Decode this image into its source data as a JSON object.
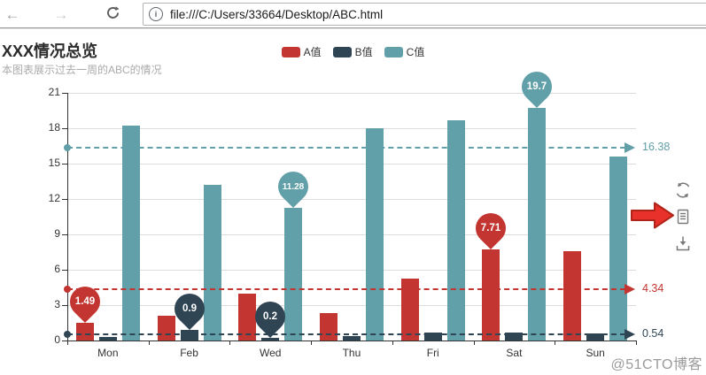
{
  "browser": {
    "url": "file:///C:/Users/33664/Desktop/ABC.html",
    "info_icon_glyph": "i"
  },
  "chart_data": {
    "type": "bar",
    "title": "XXX情况总览",
    "subtitle": "本图表展示过去一周的ABC的情况",
    "categories": [
      "Mon",
      "Feb",
      "Wed",
      "Thu",
      "Fri",
      "Sat",
      "Sun"
    ],
    "ylim": [
      0,
      21
    ],
    "yticks": [
      0,
      3,
      6,
      9,
      12,
      15,
      18,
      21
    ],
    "grid": true,
    "legend_position": "top-center",
    "series": [
      {
        "name": "A值",
        "color": "#c23531",
        "values": [
          1.49,
          2.08,
          4.0,
          2.3,
          5.22,
          7.71,
          7.58
        ],
        "avg_line": 4.34,
        "markpoints": [
          {
            "category": "Mon",
            "value": 1.49,
            "type": "min"
          },
          {
            "category": "Sat",
            "value": 7.71,
            "type": "max"
          }
        ]
      },
      {
        "name": "B值",
        "color": "#2f4554",
        "values": [
          0.3,
          0.9,
          0.2,
          0.4,
          0.7,
          0.68,
          0.6
        ],
        "avg_line": 0.54,
        "markpoints": [
          {
            "category": "Feb",
            "value": 0.9,
            "type": "max"
          },
          {
            "category": "Wed",
            "value": 0.2,
            "type": "min"
          }
        ]
      },
      {
        "name": "C值",
        "color": "#61a0a8",
        "values": [
          18.2,
          13.2,
          11.28,
          18.0,
          18.7,
          19.7,
          15.58
        ],
        "avg_line": 16.38,
        "markpoints": [
          {
            "category": "Wed",
            "value": 11.28,
            "type": "min"
          },
          {
            "category": "Sat",
            "value": 19.7,
            "type": "max"
          }
        ]
      }
    ]
  },
  "toolbox": {
    "icons": [
      "refresh-icon",
      "data-view-icon",
      "download-icon"
    ]
  },
  "annotation_arrow": {
    "color": "#e8312a",
    "points_at": "data-view-icon"
  },
  "watermark": "@51CTO博客"
}
